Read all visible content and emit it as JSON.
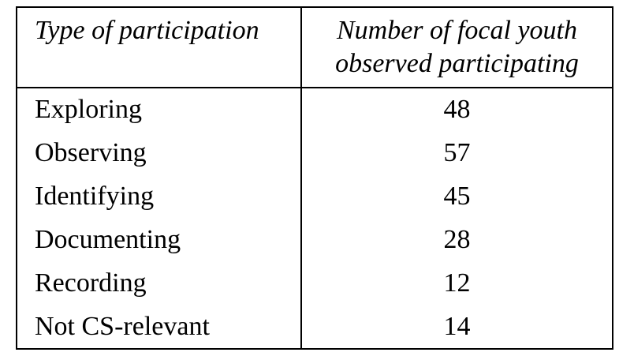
{
  "table": {
    "header": {
      "type": "Type of participation",
      "count": [
        "Number of focal youth",
        "observed participating"
      ]
    },
    "rows": [
      [
        "Exploring",
        48
      ],
      [
        "Observing",
        57
      ],
      [
        "Identifying",
        45
      ],
      [
        "Documenting",
        28
      ],
      [
        "Recording",
        12
      ],
      [
        "Not CS-relevant",
        14
      ]
    ]
  }
}
